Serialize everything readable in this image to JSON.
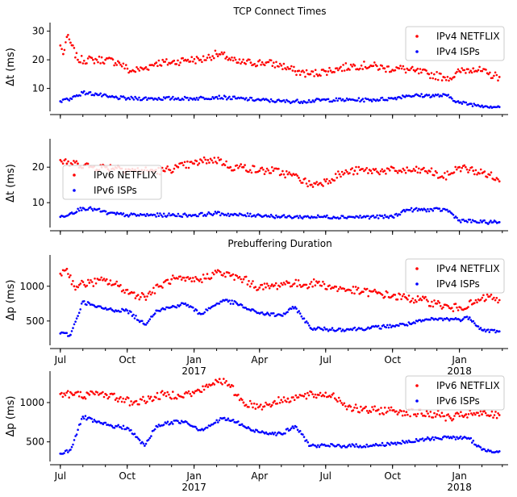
{
  "chart_data": [
    {
      "type": "scatter",
      "title": "TCP Connect Times",
      "ylabel": "Δt (ms)",
      "ylim": [
        2,
        33
      ],
      "yticks": [
        10,
        20,
        30
      ],
      "legend": "top-right",
      "series": [
        {
          "name": "IPv4 NETFLIX",
          "color": "#ff0000",
          "x": [
            "2016-07-01",
            "2016-07-05",
            "2016-07-10",
            "2016-07-15",
            "2016-07-25",
            "2016-08-15",
            "2016-09-01",
            "2016-09-20",
            "2016-10-05",
            "2016-10-25",
            "2016-11-10",
            "2016-12-01",
            "2016-12-20",
            "2017-01-10",
            "2017-02-01",
            "2017-02-15",
            "2017-03-01",
            "2017-03-20",
            "2017-04-10",
            "2017-05-01",
            "2017-05-20",
            "2017-06-10",
            "2017-07-01",
            "2017-07-20",
            "2017-08-10",
            "2017-09-01",
            "2017-09-20",
            "2017-10-10",
            "2017-11-01",
            "2017-11-20",
            "2017-12-10",
            "2017-12-25",
            "2018-01-01",
            "2018-01-20",
            "2018-02-10",
            "2018-02-25"
          ],
          "y": [
            25,
            22,
            28,
            26,
            20,
            20,
            20,
            19,
            16,
            17,
            19,
            19,
            20,
            20,
            22,
            21,
            19,
            19,
            19,
            18,
            16,
            15,
            16,
            17,
            18,
            18,
            17,
            17,
            16,
            15,
            14,
            14,
            16,
            17,
            15,
            14
          ]
        },
        {
          "name": "IPv4 ISPs",
          "color": "#0000ff",
          "x": [
            "2016-07-01",
            "2016-07-15",
            "2016-08-01",
            "2016-08-20",
            "2016-09-05",
            "2016-10-01",
            "2016-11-01",
            "2016-12-01",
            "2017-01-01",
            "2017-02-01",
            "2017-03-01",
            "2017-04-01",
            "2017-05-01",
            "2017-06-01",
            "2017-07-01",
            "2017-08-01",
            "2017-09-01",
            "2017-10-01",
            "2017-10-20",
            "2017-11-15",
            "2017-12-15",
            "2018-01-01",
            "2018-02-01",
            "2018-02-25"
          ],
          "y": [
            5.5,
            6.5,
            8.5,
            8,
            7,
            6.5,
            6.5,
            6.5,
            6.5,
            7,
            6.5,
            6,
            5.5,
            5.5,
            6,
            6,
            6,
            6.5,
            7.5,
            7.5,
            7.5,
            5,
            4,
            3.5
          ]
        }
      ]
    },
    {
      "type": "scatter",
      "title": "",
      "ylabel": "Δt (ms)",
      "ylim": [
        3,
        28
      ],
      "yticks": [
        10,
        20
      ],
      "legend": "center-left",
      "series": [
        {
          "name": "IPv6 NETFLIX",
          "color": "#ff0000",
          "x": [
            "2016-07-01",
            "2016-07-10",
            "2016-07-25",
            "2016-08-15",
            "2016-09-01",
            "2016-09-20",
            "2016-10-10",
            "2016-11-01",
            "2016-11-20",
            "2016-12-10",
            "2017-01-01",
            "2017-01-20",
            "2017-02-05",
            "2017-02-20",
            "2017-03-10",
            "2017-04-01",
            "2017-04-20",
            "2017-05-10",
            "2017-05-25",
            "2017-06-10",
            "2017-07-01",
            "2017-07-20",
            "2017-08-10",
            "2017-09-01",
            "2017-09-20",
            "2017-10-10",
            "2017-11-01",
            "2017-11-20",
            "2017-12-10",
            "2018-01-01",
            "2018-01-20",
            "2018-02-10",
            "2018-02-25"
          ],
          "y": [
            22,
            21,
            21,
            20,
            20,
            20,
            19,
            19,
            19,
            20,
            21,
            22,
            22,
            20,
            20,
            19,
            19,
            18,
            17,
            15,
            16,
            18,
            19,
            19,
            19,
            19,
            19,
            19,
            17,
            20,
            19,
            18,
            16
          ]
        },
        {
          "name": "IPv6 ISPs",
          "color": "#0000ff",
          "x": [
            "2016-07-01",
            "2016-07-15",
            "2016-08-01",
            "2016-08-20",
            "2016-09-05",
            "2016-10-01",
            "2016-11-01",
            "2016-12-01",
            "2017-01-01",
            "2017-02-01",
            "2017-03-01",
            "2017-04-01",
            "2017-05-01",
            "2017-06-01",
            "2017-07-01",
            "2017-08-01",
            "2017-09-01",
            "2017-10-01",
            "2017-10-20",
            "2017-11-15",
            "2017-12-15",
            "2018-01-01",
            "2018-02-01",
            "2018-02-25"
          ],
          "y": [
            6,
            7,
            8.5,
            8,
            7,
            6.5,
            6.5,
            6.5,
            6.5,
            7,
            6.5,
            6.5,
            6,
            6,
            6,
            6,
            6,
            6,
            8,
            8,
            8,
            5,
            4.5,
            4.5
          ]
        }
      ]
    },
    {
      "type": "scatter",
      "title": "Prebuffering Duration",
      "ylabel": "Δp (ms)",
      "ylim": [
        150,
        1450
      ],
      "yticks": [
        500,
        1000
      ],
      "legend": "top-right",
      "series": [
        {
          "name": "IPv4 NETFLIX",
          "color": "#ff0000",
          "x": [
            "2016-07-01",
            "2016-07-10",
            "2016-07-20",
            "2016-08-10",
            "2016-09-01",
            "2016-09-20",
            "2016-10-05",
            "2016-10-25",
            "2016-11-15",
            "2016-12-01",
            "2016-12-20",
            "2017-01-10",
            "2017-02-01",
            "2017-02-20",
            "2017-03-10",
            "2017-04-01",
            "2017-04-20",
            "2017-05-10",
            "2017-06-01",
            "2017-06-20",
            "2017-07-10",
            "2017-08-01",
            "2017-08-20",
            "2017-09-10",
            "2017-10-01",
            "2017-10-20",
            "2017-11-10",
            "2017-12-01",
            "2017-12-20",
            "2018-01-01",
            "2018-01-20",
            "2018-02-10",
            "2018-02-25"
          ],
          "y": [
            1180,
            1250,
            1000,
            1050,
            1080,
            1000,
            900,
            850,
            1000,
            1100,
            1080,
            1100,
            1200,
            1150,
            1100,
            980,
            1000,
            1050,
            1020,
            1050,
            980,
            950,
            920,
            900,
            860,
            830,
            800,
            750,
            680,
            700,
            750,
            850,
            800
          ]
        },
        {
          "name": "IPv4 ISPs",
          "color": "#0000ff",
          "x": [
            "2016-07-01",
            "2016-07-15",
            "2016-08-01",
            "2016-08-20",
            "2016-09-10",
            "2016-10-01",
            "2016-10-25",
            "2016-11-10",
            "2016-12-01",
            "2016-12-20",
            "2017-01-10",
            "2017-01-25",
            "2017-02-10",
            "2017-03-01",
            "2017-03-20",
            "2017-04-10",
            "2017-05-01",
            "2017-05-20",
            "2017-06-10",
            "2017-07-01",
            "2017-08-01",
            "2017-09-01",
            "2017-10-01",
            "2017-10-25",
            "2017-11-20",
            "2017-12-20",
            "2018-01-01",
            "2018-01-15",
            "2018-02-01",
            "2018-02-25"
          ],
          "y": [
            320,
            300,
            780,
            700,
            660,
            650,
            450,
            650,
            700,
            750,
            600,
            700,
            800,
            750,
            650,
            600,
            580,
            700,
            400,
            380,
            380,
            400,
            430,
            460,
            520,
            530,
            520,
            550,
            370,
            350
          ]
        }
      ]
    },
    {
      "type": "scatter",
      "title": "",
      "ylabel": "Δp (ms)",
      "ylim": [
        250,
        1400
      ],
      "yticks": [
        500,
        1000
      ],
      "legend": "top-right",
      "xticks": [
        "Jul",
        "Oct",
        "Jan",
        "Apr",
        "Jul",
        "Oct",
        "Jan"
      ],
      "xticks_years": [
        "2017",
        "2018"
      ],
      "series": [
        {
          "name": "IPv6 NETFLIX",
          "color": "#ff0000",
          "x": [
            "2016-07-01",
            "2016-07-20",
            "2016-08-10",
            "2016-09-01",
            "2016-09-20",
            "2016-10-10",
            "2016-11-01",
            "2016-11-20",
            "2016-12-10",
            "2017-01-01",
            "2017-01-20",
            "2017-02-05",
            "2017-02-20",
            "2017-03-10",
            "2017-04-01",
            "2017-04-20",
            "2017-05-10",
            "2017-06-01",
            "2017-06-20",
            "2017-07-10",
            "2017-08-01",
            "2017-08-20",
            "2017-09-10",
            "2017-10-01",
            "2017-10-20",
            "2017-11-10",
            "2017-12-01",
            "2017-12-20",
            "2018-01-10",
            "2018-02-01",
            "2018-02-25"
          ],
          "y": [
            1110,
            1100,
            1100,
            1110,
            1050,
            1000,
            1050,
            1100,
            1100,
            1120,
            1200,
            1300,
            1200,
            1000,
            950,
            1000,
            1050,
            1080,
            1100,
            1100,
            950,
            900,
            900,
            900,
            880,
            860,
            850,
            800,
            850,
            850,
            840
          ]
        },
        {
          "name": "IPv6 ISPs",
          "color": "#0000ff",
          "x": [
            "2016-07-01",
            "2016-07-15",
            "2016-08-01",
            "2016-08-20",
            "2016-09-10",
            "2016-10-01",
            "2016-10-25",
            "2016-11-10",
            "2016-12-01",
            "2016-12-20",
            "2017-01-10",
            "2017-01-25",
            "2017-02-10",
            "2017-03-01",
            "2017-03-20",
            "2017-04-10",
            "2017-05-01",
            "2017-05-20",
            "2017-06-10",
            "2017-07-01",
            "2017-08-01",
            "2017-09-01",
            "2017-10-01",
            "2017-10-25",
            "2017-11-20",
            "2017-12-20",
            "2018-01-01",
            "2018-01-15",
            "2018-02-01",
            "2018-02-25"
          ],
          "y": [
            350,
            400,
            820,
            750,
            700,
            680,
            450,
            700,
            750,
            760,
            650,
            720,
            800,
            750,
            650,
            620,
            600,
            700,
            450,
            450,
            450,
            450,
            480,
            500,
            540,
            560,
            550,
            540,
            400,
            380
          ]
        }
      ]
    }
  ]
}
